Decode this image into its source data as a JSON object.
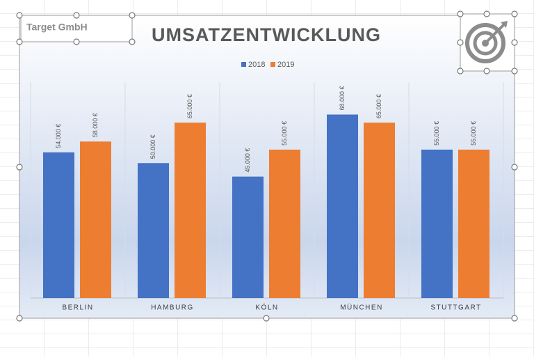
{
  "chart_data": {
    "type": "bar",
    "title": "UMSATZENTWICKLUNG",
    "caption": "Target GmbH",
    "categories": [
      "BERLIN",
      "HAMBURG",
      "KÖLN",
      "MÜNCHEN",
      "STUTTGART"
    ],
    "series": [
      {
        "name": "2018",
        "color": "#4472c4",
        "values": [
          54000,
          50000,
          45000,
          68000,
          55000
        ],
        "value_labels": [
          "54.000 €",
          "50.000 €",
          "45.000 €",
          "68.000 €",
          "55.000 €"
        ]
      },
      {
        "name": "2019",
        "color": "#ed7d31",
        "values": [
          58000,
          65000,
          55000,
          65000,
          55000
        ],
        "value_labels": [
          "58.000 €",
          "65.000 €",
          "55.000 €",
          "65.000 €",
          "55.000 €"
        ]
      }
    ],
    "ylim": [
      0,
      80000
    ],
    "legend": "top"
  }
}
